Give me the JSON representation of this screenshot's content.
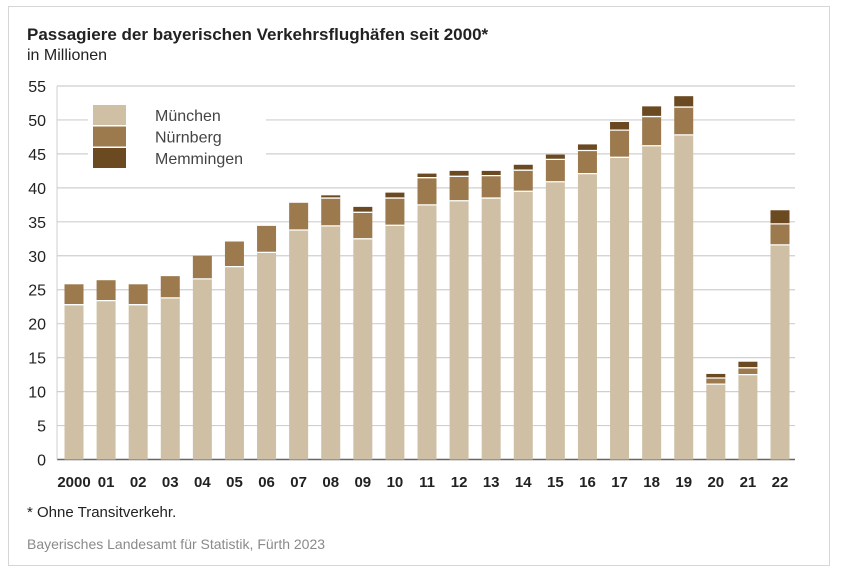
{
  "chart_data": {
    "type": "bar",
    "stacked": true,
    "title": "Passagiere der bayerischen Verkehrsflughäfen seit 2000*",
    "subtitle": "in Millionen",
    "xlabel": "",
    "ylabel": "",
    "ylim": [
      0,
      55
    ],
    "yticks": [
      0,
      5,
      10,
      15,
      20,
      25,
      30,
      35,
      40,
      45,
      50,
      55
    ],
    "grid": true,
    "legend_position": "top-left",
    "categories": [
      "2000",
      "01",
      "02",
      "03",
      "04",
      "05",
      "06",
      "07",
      "08",
      "09",
      "10",
      "11",
      "12",
      "13",
      "14",
      "15",
      "16",
      "17",
      "18",
      "19",
      "20",
      "21",
      "22"
    ],
    "series": [
      {
        "name": "München",
        "color": "#cfc0a5",
        "values": [
          22.8,
          23.4,
          22.8,
          23.8,
          26.6,
          28.4,
          30.5,
          33.8,
          34.4,
          32.5,
          34.5,
          37.5,
          38.1,
          38.5,
          39.5,
          40.9,
          42.1,
          44.5,
          46.2,
          47.8,
          11.1,
          12.5,
          31.6
        ]
      },
      {
        "name": "Nürnberg",
        "color": "#9c7a4e",
        "values": [
          3.0,
          3.0,
          3.0,
          3.2,
          3.4,
          3.7,
          3.9,
          4.0,
          4.1,
          3.9,
          4.0,
          4.0,
          3.6,
          3.3,
          3.1,
          3.3,
          3.4,
          4.0,
          4.3,
          4.1,
          0.9,
          1.0,
          3.1
        ]
      },
      {
        "name": "Memmingen",
        "color": "#6b4a22",
        "values": [
          0,
          0,
          0,
          0,
          0,
          0,
          0,
          0,
          0.4,
          0.8,
          0.8,
          0.6,
          0.8,
          0.7,
          0.8,
          0.7,
          0.9,
          1.2,
          1.5,
          1.6,
          0.6,
          0.9,
          2.0
        ]
      }
    ],
    "footnote": "* Ohne Transitverkehr.",
    "source": "Bayerisches Landesamt für Statistik, Fürth 2023"
  }
}
